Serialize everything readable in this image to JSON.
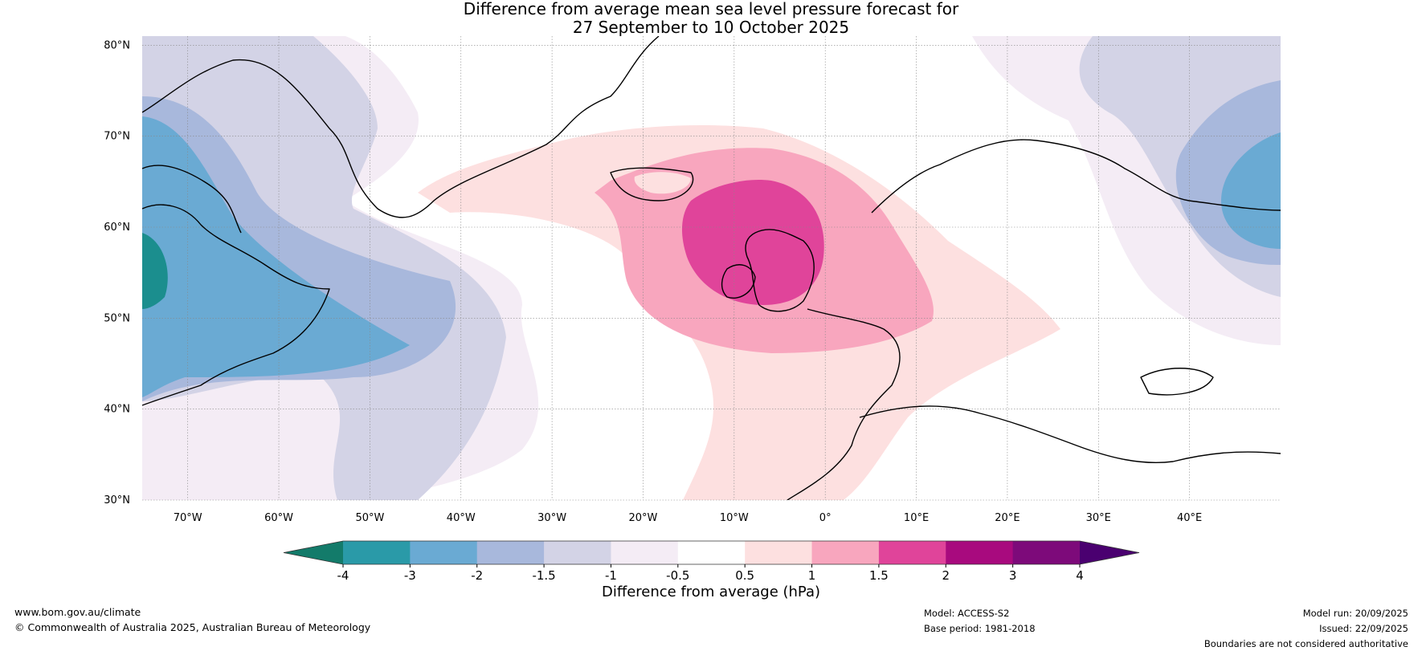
{
  "title": {
    "line1": "Difference from average mean sea level pressure forecast for",
    "line2": "27 September to 10 October 2025"
  },
  "lat_labels": [
    "80°N",
    "70°N",
    "60°N",
    "50°N",
    "40°N",
    "30°N"
  ],
  "lat_values": [
    80,
    70,
    60,
    50,
    40,
    30
  ],
  "lon_labels": [
    "70°W",
    "60°W",
    "50°W",
    "40°W",
    "30°W",
    "20°W",
    "10°W",
    "0°",
    "10°E",
    "20°E",
    "30°E",
    "40°E"
  ],
  "lon_values": [
    -70,
    -60,
    -50,
    -40,
    -30,
    -20,
    -10,
    0,
    10,
    20,
    30,
    40
  ],
  "extent": {
    "lon_min": -75,
    "lon_max": 50,
    "lat_min": 30,
    "lat_max": 81
  },
  "colorbar": {
    "labels": [
      "-4",
      "-3",
      "-2",
      "-1.5",
      "-1",
      "-0.5",
      "0.5",
      "1",
      "1.5",
      "2",
      "3",
      "4"
    ],
    "colors": [
      "#1b8e8e",
      "#2a9aa8",
      "#6aaad3",
      "#a8b8dc",
      "#d3d3e6",
      "#f4ecf5",
      "#ffffff",
      "#fde0e0",
      "#f8a6be",
      "#e0449a",
      "#a80a7e",
      "#7d0a7a"
    ],
    "under_color": "#137b6a",
    "over_color": "#4a0070",
    "title": "Difference from average (hPa)"
  },
  "footer": {
    "url": "www.bom.gov.au/climate",
    "copyright": "© Commonwealth of Australia 2025, Australian Bureau of Meteorology",
    "model": "Model: ACCESS-S2",
    "base_period": "Base period: 1981-2018",
    "model_run": "Model run: 20/09/2025",
    "issued": "Issued: 22/09/2025",
    "disclaimer": "Boundaries are not considered authoritative"
  }
}
